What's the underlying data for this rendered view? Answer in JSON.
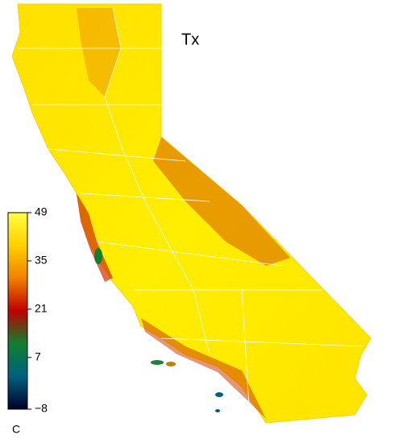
{
  "map": {
    "title": "Tx",
    "unit": "C",
    "colorbar": {
      "range": [
        -8,
        49
      ],
      "ticks": [
        49,
        35,
        21,
        7,
        {
          "value": -8,
          "label": "−8"
        }
      ],
      "colors": [
        "#000028",
        "#006080",
        "#108030",
        "#c00000",
        "#f08000",
        "#ffd000",
        "#ffff40"
      ]
    }
  }
}
